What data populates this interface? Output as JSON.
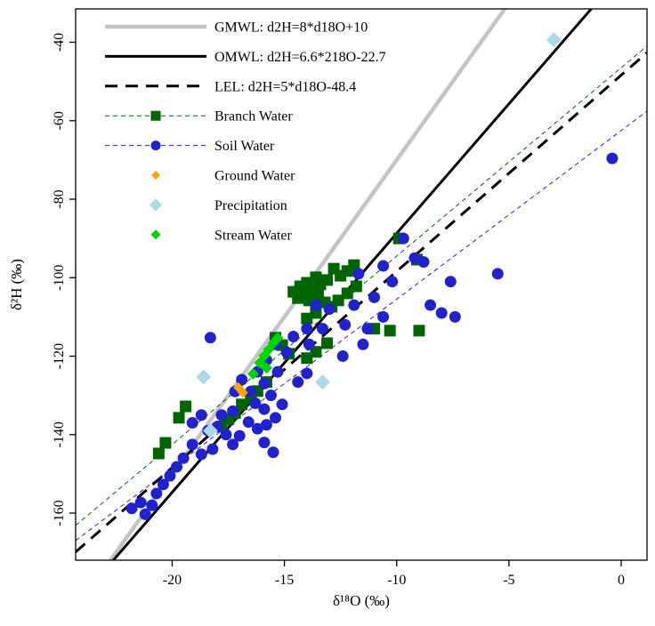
{
  "figure": {
    "background": "#ffffff"
  },
  "chart_data": {
    "type": "scatter",
    "title": "",
    "xlabel": "δ¹⁸O (‰)",
    "ylabel": "δ²H (‰)",
    "xlim": [
      -24.3,
      1.15
    ],
    "ylim": [
      -172,
      -31.5
    ],
    "x_ticks": [
      -20,
      -15,
      -10,
      -5,
      0
    ],
    "y_ticks": [
      -40,
      -60,
      -80,
      -100,
      -120,
      -140,
      -160
    ],
    "grid": false,
    "legend_position": "top-left",
    "reference_lines": [
      {
        "name": "gmwl",
        "label": "GMWL: d2H=8*d18O+10",
        "slope": 8,
        "intercept": 10,
        "color": "#c4c4c4",
        "width": 4.5,
        "dash": ""
      },
      {
        "name": "omwl",
        "label": "OMWL: d2H=6.6*218O-22.7",
        "slope": 6.6,
        "intercept": -22.7,
        "color": "#000000",
        "width": 3,
        "dash": ""
      },
      {
        "name": "lel",
        "label": "LEL: d2H=5*d18O-48.4",
        "slope": 5,
        "intercept": -48.4,
        "color": "#000000",
        "width": 3,
        "dash": "14,9"
      },
      {
        "name": "branch-water-fit",
        "label": "",
        "slope": 4.8,
        "intercept": -46.5,
        "color": "#006400",
        "width": 1,
        "dash": "5,4"
      },
      {
        "name": "soil-water-fit",
        "label": "",
        "slope": 4.3,
        "intercept": -62.5,
        "color": "#2222cc",
        "width": 1,
        "dash": "5,4"
      }
    ],
    "series": [
      {
        "name": "Branch Water",
        "marker": "square",
        "color": "#006400",
        "size": 13,
        "legend_line": {
          "dash": "5,4"
        },
        "points": [
          [
            -9.1,
            -95.4
          ],
          [
            -9.9,
            -90.0
          ],
          [
            -9.0,
            -113.5
          ],
          [
            -10.3,
            -113.5
          ],
          [
            -11.0,
            -113.0
          ],
          [
            -11.8,
            -102.2
          ],
          [
            -11.9,
            -96.8
          ],
          [
            -12.2,
            -98.3
          ],
          [
            -12.2,
            -104.0
          ],
          [
            -12.5,
            -99.5
          ],
          [
            -12.6,
            -105.8
          ],
          [
            -12.8,
            -97.7
          ],
          [
            -12.9,
            -107.4
          ],
          [
            -13.1,
            -100.6
          ],
          [
            -13.1,
            -116.7
          ],
          [
            -13.2,
            -106.3
          ],
          [
            -13.4,
            -101.7
          ],
          [
            -13.5,
            -104.5
          ],
          [
            -13.6,
            -99.9
          ],
          [
            -13.6,
            -109.0
          ],
          [
            -13.6,
            -118.9
          ],
          [
            -13.7,
            -102.9
          ],
          [
            -13.9,
            -105.8
          ],
          [
            -14.0,
            -101.3
          ],
          [
            -14.0,
            -110.4
          ],
          [
            -14.0,
            -120.5
          ],
          [
            -14.1,
            -104.0
          ],
          [
            -14.3,
            -102.2
          ],
          [
            -14.4,
            -105.2
          ],
          [
            -14.6,
            -103.6
          ],
          [
            -14.8,
            -119.4
          ],
          [
            -15.1,
            -117.2
          ],
          [
            -15.4,
            -115.3
          ],
          [
            -15.8,
            -126.6
          ],
          [
            -16.2,
            -128.9
          ],
          [
            -16.5,
            -130.7
          ],
          [
            -16.9,
            -132.3
          ],
          [
            -17.2,
            -134.5
          ],
          [
            -17.5,
            -136.1
          ],
          [
            -17.8,
            -137.9
          ],
          [
            -19.4,
            -132.8
          ],
          [
            -19.7,
            -135.7
          ],
          [
            -20.3,
            -142.1
          ],
          [
            -20.6,
            -144.8
          ]
        ]
      },
      {
        "name": "Soil Water",
        "marker": "circle",
        "color": "#2222cc",
        "size": 13,
        "legend_line": {
          "dash": "5,4"
        },
        "points": [
          [
            -0.4,
            -69.6
          ],
          [
            -5.5,
            -99.0
          ],
          [
            -7.4,
            -110.0
          ],
          [
            -7.6,
            -101.0
          ],
          [
            -8.0,
            -109.0
          ],
          [
            -8.5,
            -107.0
          ],
          [
            -8.8,
            -96.0
          ],
          [
            -9.2,
            -95.0
          ],
          [
            -9.7,
            -90.0
          ],
          [
            -10.2,
            -101.0
          ],
          [
            -10.6,
            -97.0
          ],
          [
            -10.6,
            -110.0
          ],
          [
            -11.0,
            -105.0
          ],
          [
            -11.3,
            -113.0
          ],
          [
            -11.5,
            -117.0
          ],
          [
            -11.7,
            -99.0
          ],
          [
            -11.9,
            -107.0
          ],
          [
            -12.3,
            -112.0
          ],
          [
            -12.4,
            -120.0
          ],
          [
            -13.0,
            -108.0
          ],
          [
            -13.3,
            -113.0
          ],
          [
            -13.6,
            -107.0
          ],
          [
            -13.9,
            -117.0
          ],
          [
            -14.0,
            -113.0
          ],
          [
            -14.0,
            -124.4
          ],
          [
            -14.4,
            -126.6
          ],
          [
            -14.6,
            -115.0
          ],
          [
            -14.9,
            -119.0
          ],
          [
            -15.1,
            -132.3
          ],
          [
            -15.3,
            -124.0
          ],
          [
            -15.4,
            -117.0
          ],
          [
            -15.4,
            -135.7
          ],
          [
            -15.5,
            -144.5
          ],
          [
            -15.6,
            -130.0
          ],
          [
            -15.8,
            -121.0
          ],
          [
            -15.8,
            -137.5
          ],
          [
            -15.9,
            -127.0
          ],
          [
            -15.9,
            -133.5
          ],
          [
            -15.9,
            -142.0
          ],
          [
            -16.2,
            -124.0
          ],
          [
            -16.2,
            -138.5
          ],
          [
            -16.3,
            -132.0
          ],
          [
            -16.5,
            -129.0
          ],
          [
            -16.6,
            -136.8
          ],
          [
            -16.9,
            -126.0
          ],
          [
            -17.0,
            -140.3
          ],
          [
            -17.2,
            -129.0
          ],
          [
            -17.3,
            -134.0
          ],
          [
            -17.3,
            -142.5
          ],
          [
            -17.6,
            -140.0
          ],
          [
            -17.8,
            -135.0
          ],
          [
            -18.0,
            -138.0
          ],
          [
            -18.2,
            -143.7
          ],
          [
            -18.3,
            -115.3
          ],
          [
            -18.4,
            -139.0
          ],
          [
            -18.7,
            -135.0
          ],
          [
            -18.7,
            -145.0
          ],
          [
            -19.1,
            -137.0
          ],
          [
            -19.1,
            -142.5
          ],
          [
            -19.5,
            -146.0
          ],
          [
            -19.8,
            -148.2
          ],
          [
            -20.1,
            -150.5
          ],
          [
            -20.4,
            -152.7
          ],
          [
            -20.7,
            -155.0
          ],
          [
            -20.9,
            -158.0
          ],
          [
            -21.2,
            -160.3
          ],
          [
            -21.4,
            -157.3
          ],
          [
            -21.8,
            -158.8
          ]
        ]
      },
      {
        "name": "Ground Water",
        "marker": "diamond",
        "color": "#ffa500",
        "size": 9,
        "points": [
          [
            -17.05,
            -128.0
          ],
          [
            -16.85,
            -129.3
          ]
        ]
      },
      {
        "name": "Precipitation",
        "marker": "diamond",
        "color": "#add8e6",
        "size": 13,
        "points": [
          [
            -18.6,
            -125.3
          ],
          [
            -13.3,
            -126.6
          ],
          [
            -3.0,
            -39.4
          ],
          [
            -18.3,
            -139.0
          ]
        ]
      },
      {
        "name": "Stream Water",
        "marker": "diamond",
        "color": "#00d400",
        "size": 10,
        "points": [
          [
            -16.4,
            -124.5
          ],
          [
            -16.1,
            -121.7
          ],
          [
            -15.9,
            -119.9
          ],
          [
            -15.7,
            -118.3
          ],
          [
            -15.5,
            -116.7
          ],
          [
            -15.8,
            -123.0
          ],
          [
            -15.3,
            -115.4
          ]
        ]
      }
    ],
    "legend": {
      "entries": [
        {
          "label": "GMWL: d2H=8*d18O+10",
          "swatch": "line",
          "ref": "gmwl"
        },
        {
          "label": "OMWL: d2H=6.6*218O-22.7",
          "swatch": "line",
          "ref": "omwl"
        },
        {
          "label": "LEL: d2H=5*d18O-48.4",
          "swatch": "line",
          "ref": "lel"
        },
        {
          "label": "Branch Water",
          "swatch": "line-marker",
          "series": "Branch Water"
        },
        {
          "label": "Soil Water",
          "swatch": "line-marker",
          "series": "Soil Water"
        },
        {
          "label": "Ground Water",
          "swatch": "marker",
          "series": "Ground Water"
        },
        {
          "label": "Precipitation",
          "swatch": "marker",
          "series": "Precipitation"
        },
        {
          "label": "Stream Water",
          "swatch": "marker",
          "series": "Stream Water"
        }
      ]
    }
  }
}
